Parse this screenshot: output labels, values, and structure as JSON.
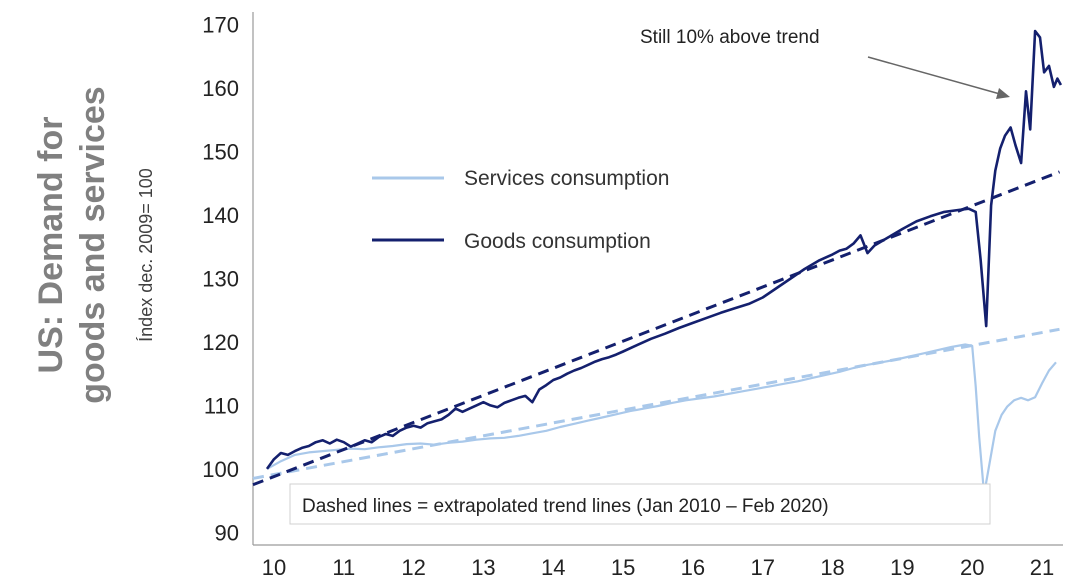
{
  "chart_data": {
    "type": "line",
    "title": "US: Demand for goods and services",
    "title_lines": [
      "US: Demand for",
      "goods and services"
    ],
    "ylabel": "Índex dec. 2009= 100",
    "ylim": [
      88,
      172
    ],
    "yticks": [
      90,
      100,
      110,
      120,
      130,
      140,
      150,
      160,
      170
    ],
    "xlim": [
      2009.7,
      2021.3
    ],
    "xtick_values": [
      2010,
      2011,
      2012,
      2013,
      2014,
      2015,
      2016,
      2017,
      2018,
      2019,
      2020,
      2021
    ],
    "xtick_labels": [
      "10",
      "11",
      "12",
      "13",
      "14",
      "15",
      "16",
      "17",
      "18",
      "19",
      "20",
      "21"
    ],
    "grid": false,
    "legend_position": "center-left",
    "series": [
      {
        "name": "Services consumption",
        "color": "#a9c8ea",
        "dash": false,
        "x": [
          2009.9,
          2010.1,
          2010.3,
          2010.5,
          2010.7,
          2010.9,
          2011.1,
          2011.3,
          2011.5,
          2011.7,
          2011.9,
          2012.1,
          2012.3,
          2012.5,
          2012.7,
          2012.9,
          2013.1,
          2013.3,
          2013.5,
          2013.7,
          2013.9,
          2014.1,
          2014.3,
          2014.5,
          2014.7,
          2014.9,
          2015.1,
          2015.3,
          2015.5,
          2015.7,
          2015.9,
          2016.1,
          2016.3,
          2016.5,
          2016.7,
          2016.9,
          2017.1,
          2017.3,
          2017.5,
          2017.7,
          2017.9,
          2018.1,
          2018.3,
          2018.5,
          2018.7,
          2018.9,
          2019.1,
          2019.3,
          2019.5,
          2019.7,
          2019.9,
          2020.0,
          2020.05,
          2020.1,
          2020.17,
          2020.25,
          2020.33,
          2020.42,
          2020.5,
          2020.6,
          2020.7,
          2020.8,
          2020.9,
          2021.0,
          2021.1,
          2021.2
        ],
        "values": [
          100,
          101.2,
          102.2,
          102.6,
          102.8,
          103,
          103.2,
          103.1,
          103.4,
          103.6,
          103.9,
          104,
          103.8,
          104.1,
          104.3,
          104.6,
          104.8,
          104.9,
          105.2,
          105.6,
          106,
          106.6,
          107.1,
          107.6,
          108.1,
          108.6,
          109.1,
          109.5,
          109.9,
          110.4,
          110.8,
          111.1,
          111.4,
          111.8,
          112.2,
          112.6,
          113,
          113.4,
          113.8,
          114.3,
          114.8,
          115.3,
          115.9,
          116.4,
          116.8,
          117.2,
          117.7,
          118.2,
          118.7,
          119.2,
          119.6,
          119.4,
          113,
          105,
          96,
          101,
          106,
          108.5,
          109.8,
          110.8,
          111.2,
          110.8,
          111.3,
          113.5,
          115.5,
          116.8
        ]
      },
      {
        "name": "Goods consumption",
        "color": "#14206e",
        "dash": false,
        "x": [
          2009.9,
          2010.0,
          2010.1,
          2010.2,
          2010.3,
          2010.4,
          2010.5,
          2010.6,
          2010.7,
          2010.8,
          2010.9,
          2011.0,
          2011.1,
          2011.2,
          2011.3,
          2011.4,
          2011.5,
          2011.6,
          2011.7,
          2011.8,
          2011.9,
          2012.0,
          2012.1,
          2012.2,
          2012.3,
          2012.4,
          2012.5,
          2012.6,
          2012.7,
          2012.8,
          2012.9,
          2013.0,
          2013.1,
          2013.2,
          2013.3,
          2013.4,
          2013.5,
          2013.6,
          2013.7,
          2013.8,
          2013.9,
          2014.0,
          2014.1,
          2014.2,
          2014.3,
          2014.4,
          2014.5,
          2014.6,
          2014.7,
          2014.8,
          2014.9,
          2015.0,
          2015.2,
          2015.4,
          2015.6,
          2015.8,
          2016.0,
          2016.2,
          2016.4,
          2016.6,
          2016.8,
          2017.0,
          2017.2,
          2017.4,
          2017.6,
          2017.8,
          2018.0,
          2018.1,
          2018.2,
          2018.3,
          2018.4,
          2018.5,
          2018.6,
          2018.8,
          2019.0,
          2019.2,
          2019.4,
          2019.6,
          2019.8,
          2019.95,
          2020.05,
          2020.12,
          2020.2,
          2020.27,
          2020.33,
          2020.4,
          2020.47,
          2020.55,
          2020.62,
          2020.7,
          2020.77,
          2020.83,
          2020.9,
          2020.97,
          2021.03,
          2021.1,
          2021.17,
          2021.22,
          2021.27
        ],
        "values": [
          100,
          101.5,
          102.5,
          102.2,
          102.8,
          103.3,
          103.6,
          104.2,
          104.5,
          104,
          104.6,
          104.2,
          103.5,
          104,
          104.5,
          104.2,
          105,
          105.5,
          105.2,
          106,
          106.5,
          106.8,
          106.5,
          107.2,
          107.5,
          107.8,
          108.5,
          109.5,
          109,
          109.5,
          110,
          110.5,
          110,
          109.7,
          110.4,
          110.8,
          111.2,
          111.5,
          110.5,
          112.5,
          113.2,
          114,
          114.4,
          115,
          115.5,
          115.9,
          116.4,
          116.9,
          117.3,
          117.6,
          118,
          118.5,
          119.5,
          120.5,
          121.3,
          122.2,
          123,
          123.8,
          124.6,
          125.3,
          126,
          127,
          128.5,
          130,
          131.5,
          132.8,
          133.8,
          134.4,
          134.7,
          135.5,
          136.8,
          134,
          135.2,
          136.5,
          137.8,
          139,
          139.8,
          140.5,
          140.8,
          141,
          140.5,
          133,
          122.5,
          141.5,
          147,
          150.5,
          152.5,
          153.8,
          151,
          148.2,
          159.5,
          153.5,
          169,
          168,
          162.5,
          163.5,
          160.2,
          161.5,
          160.5
        ]
      },
      {
        "name": "Services trend",
        "color": "#a9c8ea",
        "dash": true,
        "x": [
          2009.7,
          2021.25
        ],
        "values": [
          98.5,
          122
        ]
      },
      {
        "name": "Goods trend",
        "color": "#14206e",
        "dash": true,
        "x": [
          2009.7,
          2021.25
        ],
        "values": [
          97.5,
          146.8
        ]
      }
    ],
    "annotations": [
      {
        "text": "Still 10% above trend",
        "arrow_to_x": 2020.62,
        "arrow_to_y": 159.5
      }
    ],
    "note": "Dashed lines = extrapolated trend lines (Jan 2010 – Feb 2020)"
  }
}
